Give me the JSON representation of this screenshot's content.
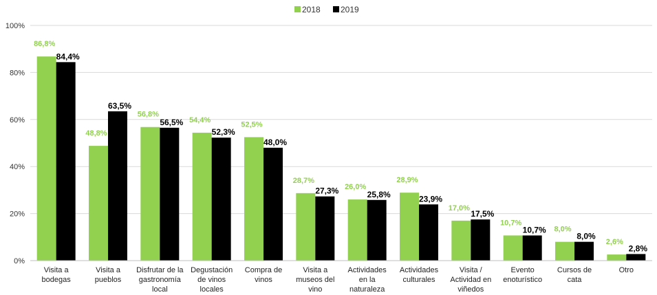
{
  "colors": {
    "s2018": "#92d050",
    "s2019": "#000000",
    "grid": "#d9d9d9",
    "axis": "#bfbfbf"
  },
  "chart_data": {
    "type": "bar",
    "title": "",
    "xlabel": "",
    "ylabel": "",
    "ylim": [
      0,
      100
    ],
    "yticks": [
      "0%",
      "20%",
      "40%",
      "60%",
      "80%",
      "100%"
    ],
    "grid": true,
    "legend_position": "top-center",
    "categories": [
      [
        "Visita a",
        "bodegas"
      ],
      [
        "Visita a",
        "pueblos"
      ],
      [
        "Disfrutar de la",
        "gastronomía",
        "local"
      ],
      [
        "Degustación",
        "de vinos",
        "locales"
      ],
      [
        "Compra de",
        "vinos"
      ],
      [
        "Visita a",
        "museos del",
        "vino"
      ],
      [
        "Actividades",
        "en la",
        "naturaleza"
      ],
      [
        "Actividades",
        "culturales"
      ],
      [
        "Visita /",
        "Actividad en",
        "viñedos"
      ],
      [
        "Evento",
        "enoturístico"
      ],
      [
        "Cursos de",
        "cata"
      ],
      [
        "Otro"
      ]
    ],
    "series": [
      {
        "name": "2018",
        "values": [
          86.8,
          48.8,
          56.8,
          54.4,
          52.5,
          28.7,
          26.0,
          28.9,
          17.0,
          10.7,
          8.0,
          2.6
        ],
        "labels": [
          "86,8%",
          "48,8%",
          "56,8%",
          "54,4%",
          "52,5%",
          "28,7%",
          "26,0%",
          "28,9%",
          "17,0%",
          "10,7%",
          "8,0%",
          "2,6%"
        ]
      },
      {
        "name": "2019",
        "values": [
          84.4,
          63.5,
          56.5,
          52.3,
          48.0,
          27.3,
          25.8,
          23.9,
          17.5,
          10.7,
          8.0,
          2.8
        ],
        "labels": [
          "84,4%",
          "63,5%",
          "56,5%",
          "52,3%",
          "48,0%",
          "27,3%",
          "25,8%",
          "23,9%",
          "17,5%",
          "10,7%",
          "8,0%",
          "2,8%"
        ]
      }
    ]
  }
}
